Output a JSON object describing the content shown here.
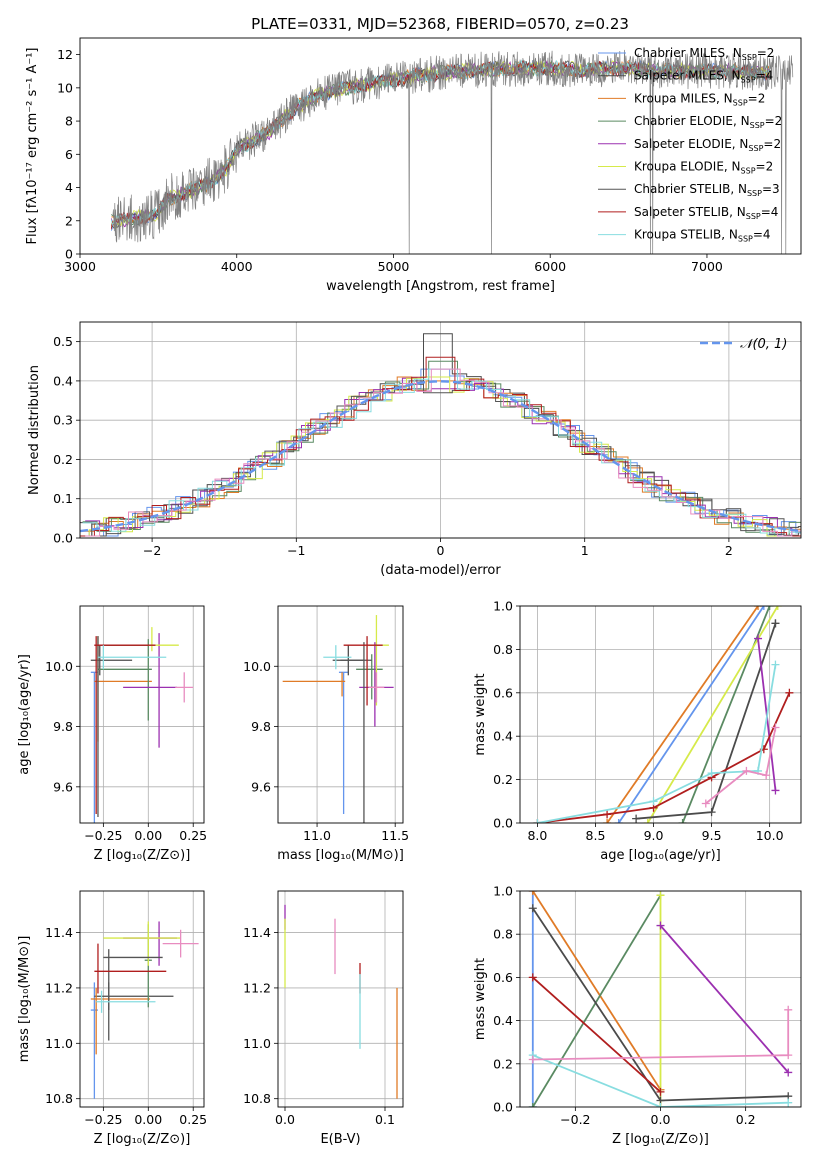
{
  "title": "PLATE=0331, MJD=52368, FIBERID=0570, z=0.23",
  "colors": {
    "Chabrier MILES": "#6495ed",
    "Salpeter MILES": "#4b4b4b",
    "Kroupa MILES": "#e07b27",
    "Chabrier ELODIE": "#5a8a62",
    "Salpeter ELODIE": "#9b30b0",
    "Kroupa ELODIE": "#d6ea4a",
    "Chabrier STELIB": "#555555",
    "Salpeter STELIB": "#b01e1e",
    "Kroupa STELIB": "#88dde0",
    "extra": "#e88cc0",
    "gaussian": "#6495ed",
    "grid": "#b0b0b0",
    "data": "#808080"
  },
  "chart_data": [
    {
      "id": "spectrum",
      "type": "line",
      "title": "PLATE=0331, MJD=52368, FIBERID=0570, z=0.23",
      "xlabel": "wavelength [Angstrom, rest frame]",
      "ylabel": "Flux [fλ10⁻¹⁷ erg cm⁻² s⁻¹ A⁻¹]",
      "xlim": [
        3000,
        7600
      ],
      "ylim": [
        0,
        13
      ],
      "xticks": [
        "3000",
        "4000",
        "5000",
        "6000",
        "7000"
      ],
      "yticks": [
        "0",
        "2",
        "4",
        "6",
        "8",
        "10",
        "12"
      ],
      "legend_position": "top-right",
      "legend": [
        "Chabrier MILES, N_SSP=2",
        "Salpeter MILES, N_SSP=4",
        "Kroupa MILES, N_SSP=2",
        "Chabrier ELODIE, N_SSP=2",
        "Salpeter ELODIE, N_SSP=2",
        "Kroupa ELODIE, N_SSP=2",
        "Chabrier STELIB, N_SSP=3",
        "Salpeter STELIB, N_SSP=4",
        "Kroupa STELIB, N_SSP=4"
      ],
      "continuum": {
        "x": [
          3200,
          3500,
          3550,
          3650,
          3750,
          3850,
          3950,
          4000,
          4100,
          4200,
          4300,
          4400,
          4500,
          4700,
          5000,
          5300,
          5600,
          5900,
          6200,
          6500,
          6800,
          7100,
          7400
        ],
        "y": [
          1.9,
          2.4,
          3.3,
          3.6,
          4.0,
          4.4,
          5.3,
          6.3,
          6.8,
          7.3,
          8.2,
          8.9,
          9.5,
          10.0,
          10.5,
          10.9,
          11.1,
          11.2,
          11.1,
          11.2,
          11.0,
          11.0,
          10.9
        ]
      },
      "model_range": [
        3200,
        7400
      ],
      "data_range": [
        3210,
        7550
      ]
    },
    {
      "id": "residuals",
      "type": "line",
      "xlabel": "(data-model)/error",
      "ylabel": "Normed distribution",
      "xlim": [
        -2.5,
        2.5
      ],
      "ylim": [
        0,
        0.55
      ],
      "xticks": [
        "−2",
        "−1",
        "0",
        "1",
        "2"
      ],
      "yticks": [
        "0.0",
        "0.1",
        "0.2",
        "0.3",
        "0.4",
        "0.5"
      ],
      "legend_position": "top-right",
      "legend": [
        "𝒩(0, 1)"
      ],
      "bin_width": 0.1,
      "bin_start": -2.5,
      "peak_values": [
        0.43,
        0.52,
        0.4,
        0.45,
        0.38,
        0.41,
        0.37,
        0.46,
        0.43
      ]
    },
    {
      "id": "age-vs-Z",
      "type": "scatter",
      "xlabel": "Z [log₁₀(Z/Z⊙)]",
      "ylabel": "age  [log₁₀(age/yr)]",
      "xlim": [
        -0.38,
        0.31
      ],
      "ylim": [
        9.48,
        10.2
      ],
      "xticks": [
        "−0.25",
        "0.00",
        "0.25"
      ],
      "yticks": [
        "9.6",
        "9.8",
        "10.0"
      ],
      "points": [
        {
          "model": "Chabrier MILES",
          "x": -0.3,
          "xerr": [
            0.02,
            0.02
          ],
          "y": 9.98,
          "yerr": [
            0.5,
            0.0
          ]
        },
        {
          "model": "Salpeter MILES",
          "x": -0.27,
          "xerr": [
            0.05,
            0.18
          ],
          "y": 10.02,
          "yerr": [
            0.05,
            0.05
          ]
        },
        {
          "model": "Kroupa MILES",
          "x": -0.28,
          "xerr": [
            0.02,
            0.3
          ],
          "y": 9.95,
          "yerr": [
            0.2,
            0.15
          ]
        },
        {
          "model": "Chabrier ELODIE",
          "x": 0.0,
          "xerr": [
            0.28,
            0.02
          ],
          "y": 9.99,
          "yerr": [
            0.17,
            0.1
          ]
        },
        {
          "model": "Salpeter ELODIE",
          "x": 0.06,
          "xerr": [
            0.2,
            0.1
          ],
          "y": 9.93,
          "yerr": [
            0.2,
            0.18
          ]
        },
        {
          "model": "Kroupa ELODIE",
          "x": 0.02,
          "xerr": [
            0.25,
            0.15
          ],
          "y": 10.07,
          "yerr": [
            0.02,
            0.06
          ]
        },
        {
          "model": "Chabrier STELIB",
          "x": -0.28,
          "xerr": [
            0.02,
            0.28
          ],
          "y": 10.07,
          "yerr": [
            0.57,
            0.03
          ]
        },
        {
          "model": "Salpeter STELIB",
          "x": -0.29,
          "xerr": [
            0.01,
            0.33
          ],
          "y": 10.07,
          "yerr": [
            0.56,
            0.03
          ]
        },
        {
          "model": "Kroupa STELIB",
          "x": -0.25,
          "xerr": [
            0.03,
            0.35
          ],
          "y": 10.03,
          "yerr": [
            0.04,
            0.04
          ]
        },
        {
          "model": "extra",
          "x": 0.2,
          "xerr": [
            0.05,
            0.05
          ],
          "y": 9.93,
          "yerr": [
            0.05,
            0.05
          ]
        }
      ]
    },
    {
      "id": "age-vs-mass",
      "type": "scatter",
      "xlabel": "mass [log₁₀(M/M⊙)]",
      "ylabel": "",
      "xlim": [
        10.75,
        11.55
      ],
      "ylim": [
        9.48,
        10.2
      ],
      "xticks": [
        "11.0",
        "11.5"
      ],
      "yticks": [
        "9.6",
        "9.8",
        "10.0"
      ],
      "points": [
        {
          "model": "Chabrier MILES",
          "x": 11.17,
          "xerr": [
            0.03,
            0.03
          ],
          "y": 9.98,
          "yerr": [
            0.47,
            0.0
          ]
        },
        {
          "model": "Salpeter MILES",
          "x": 11.2,
          "xerr": [
            0.1,
            0.1
          ],
          "y": 10.02,
          "yerr": [
            0.05,
            0.05
          ]
        },
        {
          "model": "Kroupa MILES",
          "x": 11.16,
          "xerr": [
            0.38,
            0.02
          ],
          "y": 9.95,
          "yerr": [
            0.05,
            0.03
          ]
        },
        {
          "model": "Chabrier ELODIE",
          "x": 11.35,
          "xerr": [
            0.1,
            0.07
          ],
          "y": 9.99,
          "yerr": [
            0.1,
            0.05
          ]
        },
        {
          "model": "Salpeter ELODIE",
          "x": 11.37,
          "xerr": [
            0.1,
            0.12
          ],
          "y": 9.93,
          "yerr": [
            0.13,
            0.15
          ]
        },
        {
          "model": "Kroupa ELODIE",
          "x": 11.38,
          "xerr": [
            0.05,
            0.08
          ],
          "y": 10.07,
          "yerr": [
            0.2,
            0.1
          ]
        },
        {
          "model": "Chabrier STELIB",
          "x": 11.3,
          "xerr": [
            0.15,
            0.05
          ],
          "y": 10.02,
          "yerr": [
            0.6,
            0.06
          ]
        },
        {
          "model": "Salpeter STELIB",
          "x": 11.32,
          "xerr": [
            0.15,
            0.1
          ],
          "y": 10.07,
          "yerr": [
            0.2,
            0.03
          ]
        },
        {
          "model": "Kroupa STELIB",
          "x": 11.12,
          "xerr": [
            0.08,
            0.1
          ],
          "y": 10.03,
          "yerr": [
            0.04,
            0.04
          ]
        },
        {
          "model": "extra",
          "x": 11.38,
          "xerr": [
            0.05,
            0.05
          ],
          "y": 9.93,
          "yerr": [
            0.05,
            0.05
          ]
        }
      ]
    },
    {
      "id": "weight-vs-age",
      "type": "line",
      "xlabel": "age  [log₁₀(age/yr)]",
      "ylabel": "mass weight",
      "xlim": [
        7.85,
        10.27
      ],
      "ylim": [
        0,
        1
      ],
      "xticks": [
        "8.0",
        "8.5",
        "9.0",
        "9.5",
        "10.0"
      ],
      "yticks": [
        "0.0",
        "0.2",
        "0.4",
        "0.6",
        "0.8",
        "1.0"
      ],
      "series": [
        {
          "model": "Chabrier MILES",
          "x": [
            8.7,
            9.95
          ],
          "y": [
            0.0,
            1.0
          ]
        },
        {
          "model": "Kroupa MILES",
          "x": [
            8.6,
            9.9
          ],
          "y": [
            0.0,
            1.0
          ]
        },
        {
          "model": "Chabrier ELODIE",
          "x": [
            9.25,
            10.0
          ],
          "y": [
            0.0,
            1.0
          ]
        },
        {
          "model": "Kroupa ELODIE",
          "x": [
            8.95,
            10.07
          ],
          "y": [
            0.0,
            1.0
          ]
        },
        {
          "model": "Salpeter MILES",
          "x": [
            8.85,
            9.5,
            10.05,
            10.05
          ],
          "y": [
            0.02,
            0.05,
            0.92,
            0.92
          ]
        },
        {
          "model": "Salpeter ELODIE",
          "x": [
            9.9,
            10.05
          ],
          "y": [
            0.85,
            0.15
          ]
        },
        {
          "model": "Salpeter STELIB",
          "x": [
            8.0,
            8.6,
            9.0,
            9.5,
            9.95,
            10.17
          ],
          "y": [
            0.0,
            0.04,
            0.07,
            0.21,
            0.34,
            0.6
          ]
        },
        {
          "model": "Kroupa STELIB",
          "x": [
            8.0,
            9.0,
            9.5,
            9.9,
            10.05
          ],
          "y": [
            0.0,
            0.1,
            0.23,
            0.24,
            0.73
          ]
        },
        {
          "model": "extra",
          "x": [
            9.45,
            9.8,
            9.97,
            10.05
          ],
          "y": [
            0.09,
            0.24,
            0.22,
            0.44
          ]
        }
      ]
    },
    {
      "id": "mass-vs-Z",
      "type": "scatter",
      "xlabel": "Z [log₁₀(Z/Z⊙)]",
      "ylabel": "mass [log₁₀(M/M⊙)]",
      "xlim": [
        -0.38,
        0.31
      ],
      "ylim": [
        10.77,
        11.55
      ],
      "xticks": [
        "−0.25",
        "0.00",
        "0.25"
      ],
      "yticks": [
        "10.8",
        "11.0",
        "11.2",
        "11.4"
      ],
      "points": [
        {
          "model": "Chabrier MILES",
          "x": -0.3,
          "xerr": [
            0.02,
            0.02
          ],
          "y": 11.12,
          "yerr": [
            0.32,
            0.1
          ]
        },
        {
          "model": "Salpeter MILES",
          "x": -0.22,
          "xerr": [
            0.08,
            0.36
          ],
          "y": 11.17,
          "yerr": [
            0.05,
            0.05
          ]
        },
        {
          "model": "Kroupa MILES",
          "x": -0.29,
          "xerr": [
            0.03,
            0.3
          ],
          "y": 11.16,
          "yerr": [
            0.2,
            0.04
          ]
        },
        {
          "model": "Chabrier ELODIE",
          "x": 0.0,
          "xerr": [
            0.02,
            0.02
          ],
          "y": 11.3,
          "yerr": [
            0.17,
            0.13
          ]
        },
        {
          "model": "Salpeter ELODIE",
          "x": 0.06,
          "xerr": [
            0.2,
            0.1
          ],
          "y": 11.38,
          "yerr": [
            0.1,
            0.06
          ]
        },
        {
          "model": "Kroupa ELODIE",
          "x": 0.0,
          "xerr": [
            0.25,
            0.18
          ],
          "y": 11.38,
          "yerr": [
            0.1,
            0.06
          ]
        },
        {
          "model": "Chabrier STELIB",
          "x": -0.22,
          "xerr": [
            0.03,
            0.3
          ],
          "y": 11.31,
          "yerr": [
            0.3,
            0.03
          ]
        },
        {
          "model": "Salpeter STELIB",
          "x": -0.28,
          "xerr": [
            0.02,
            0.38
          ],
          "y": 11.26,
          "yerr": [
            0.08,
            0.1
          ]
        },
        {
          "model": "Kroupa STELIB",
          "x": -0.26,
          "xerr": [
            0.03,
            0.3
          ],
          "y": 11.15,
          "yerr": [
            0.04,
            0.04
          ]
        },
        {
          "model": "extra",
          "x": 0.18,
          "xerr": [
            0.1,
            0.1
          ],
          "y": 11.36,
          "yerr": [
            0.05,
            0.05
          ]
        }
      ]
    },
    {
      "id": "mass-vs-ebv",
      "type": "scatter",
      "xlabel": "E(B-V)",
      "ylabel": "",
      "xlim": [
        -0.007,
        0.118
      ],
      "ylim": [
        10.77,
        11.55
      ],
      "xticks": [
        "0.0",
        "0.1"
      ],
      "yticks": [
        "10.8",
        "11.0",
        "11.2",
        "11.4"
      ],
      "points": [
        {
          "model": "Salpeter ELODIE",
          "x": 0.0,
          "y": 11.44,
          "yerr": [
            0.03,
            0.06
          ]
        },
        {
          "model": "Kroupa ELODIE",
          "x": 0.0,
          "y": 11.35,
          "yerr": [
            0.15,
            0.1
          ]
        },
        {
          "model": "extra",
          "x": 0.05,
          "y": 11.35,
          "yerr": [
            0.1,
            0.1
          ]
        },
        {
          "model": "Salpeter STELIB",
          "x": 0.075,
          "y": 11.23,
          "yerr": [
            0.05,
            0.06
          ]
        },
        {
          "model": "Kroupa STELIB",
          "x": 0.075,
          "y": 11.1,
          "yerr": [
            0.12,
            0.15
          ]
        },
        {
          "model": "Kroupa MILES",
          "x": 0.112,
          "y": 11.0,
          "yerr": [
            0.2,
            0.2
          ]
        }
      ]
    },
    {
      "id": "weight-vs-Z",
      "type": "line",
      "xlabel": "Z [log₁₀(Z/Z⊙)]",
      "ylabel": "mass weight",
      "xlim": [
        -0.33,
        0.33
      ],
      "ylim": [
        0,
        1
      ],
      "xticks": [
        "−0.2",
        "0.0",
        "0.2"
      ],
      "yticks": [
        "0.0",
        "0.2",
        "0.4",
        "0.6",
        "0.8",
        "1.0"
      ],
      "series": [
        {
          "model": "Chabrier MILES",
          "x": [
            -0.3,
            -0.3
          ],
          "y": [
            0.0,
            1.0
          ]
        },
        {
          "model": "Kroupa MILES",
          "x": [
            -0.3,
            0.0
          ],
          "y": [
            1.0,
            0.08
          ]
        },
        {
          "model": "Chabrier ELODIE",
          "x": [
            -0.3,
            0.0
          ],
          "y": [
            0.0,
            0.98
          ]
        },
        {
          "model": "Kroupa ELODIE",
          "x": [
            0.0,
            0.0
          ],
          "y": [
            0.0,
            0.98
          ]
        },
        {
          "model": "Salpeter MILES",
          "x": [
            -0.3,
            0.0,
            0.3
          ],
          "y": [
            0.92,
            0.03,
            0.05
          ]
        },
        {
          "model": "Salpeter ELODIE",
          "x": [
            0.0,
            0.3
          ],
          "y": [
            0.84,
            0.16
          ]
        },
        {
          "model": "Salpeter STELIB",
          "x": [
            -0.3,
            0.0
          ],
          "y": [
            0.6,
            0.07
          ]
        },
        {
          "model": "Kroupa STELIB",
          "x": [
            -0.3,
            0.0,
            0.3
          ],
          "y": [
            0.24,
            0.0,
            0.02
          ]
        },
        {
          "model": "extra",
          "x": [
            -0.3,
            0.3,
            0.3
          ],
          "y": [
            0.22,
            0.24,
            0.45
          ]
        }
      ]
    }
  ]
}
